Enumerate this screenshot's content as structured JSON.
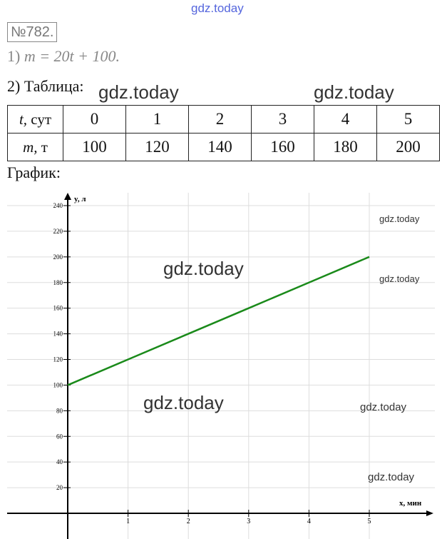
{
  "problem_number": "№782.",
  "part1": {
    "prefix": "1)",
    "equation": "m = 20t + 100."
  },
  "part2": {
    "label": "2) Таблица:"
  },
  "table": {
    "row_headers": [
      "t, сут",
      "m, т"
    ],
    "t_values": [
      "0",
      "1",
      "2",
      "3",
      "4",
      "5"
    ],
    "m_values": [
      "100",
      "120",
      "140",
      "160",
      "180",
      "200"
    ]
  },
  "graph_label": "График:",
  "watermark": "gdz.today",
  "chart_data": {
    "type": "line",
    "xlabel": "x, мин",
    "ylabel": "y, л",
    "xlim": [
      0,
      5
    ],
    "ylim": [
      0,
      240
    ],
    "x_ticks": [
      1,
      2,
      3,
      4,
      5
    ],
    "y_ticks": [
      20,
      40,
      60,
      80,
      100,
      120,
      140,
      160,
      180,
      200,
      220,
      240
    ],
    "grid": true,
    "line_color": "#1a8a1a",
    "series": [
      {
        "x": [
          0,
          1,
          2,
          3,
          4,
          5
        ],
        "y": [
          100,
          120,
          140,
          160,
          180,
          200
        ]
      }
    ]
  }
}
